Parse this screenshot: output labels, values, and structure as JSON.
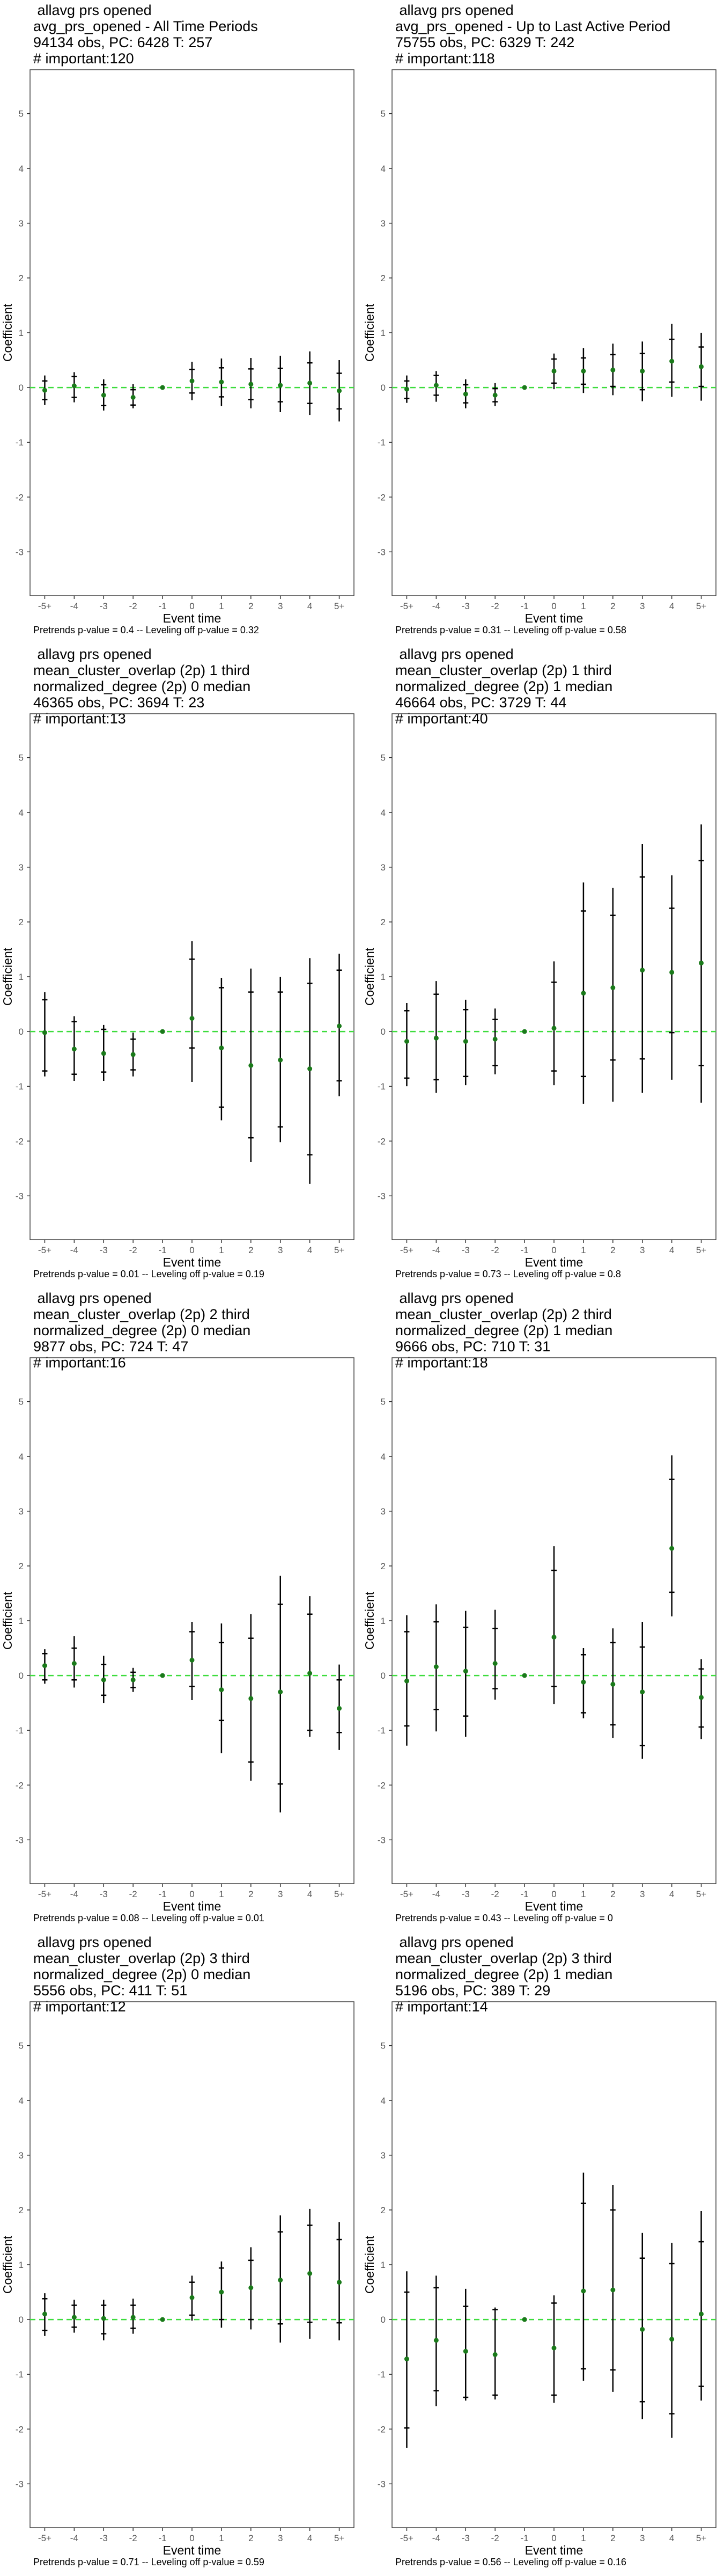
{
  "style": {
    "point_color": "#1a7a1a",
    "refline_color": "#3ddc3d",
    "bar_color": "#000000",
    "frame_color": "#444444"
  },
  "chart_data": [
    {
      "type": "scatter",
      "header_lines": [
        "allavg prs opened",
        "avg_prs_opened - All Time Periods",
        "94134 obs, PC: 6428 T: 257",
        "# important:120"
      ],
      "xlabel": "Event time",
      "ylabel": "Coefficient",
      "categories": [
        "-5+",
        "-4",
        "-3",
        "-2",
        "-1",
        "0",
        "1",
        "2",
        "3",
        "4",
        "5+"
      ],
      "ylim": [
        -3.8,
        5.8
      ],
      "yticks": [
        -3,
        -2,
        -1,
        0,
        1,
        2,
        3,
        4,
        5
      ],
      "series": [
        {
          "values": [
            -0.05,
            0.03,
            -0.14,
            -0.18,
            0.0,
            0.12,
            0.1,
            0.06,
            0.04,
            0.08,
            -0.06
          ],
          "outer_lo": [
            -0.32,
            -0.27,
            -0.42,
            -0.38,
            0.0,
            -0.23,
            -0.34,
            -0.38,
            -0.45,
            -0.5,
            -0.62
          ],
          "outer_hi": [
            0.22,
            0.28,
            0.15,
            0.06,
            0.0,
            0.47,
            0.53,
            0.54,
            0.58,
            0.66,
            0.5
          ],
          "inner_lo": [
            -0.22,
            -0.18,
            -0.33,
            -0.32,
            0.0,
            -0.1,
            -0.17,
            -0.22,
            -0.26,
            -0.29,
            -0.39
          ],
          "inner_hi": [
            0.12,
            0.2,
            0.05,
            -0.04,
            0.0,
            0.33,
            0.36,
            0.34,
            0.35,
            0.45,
            0.26
          ]
        }
      ],
      "footnote": "Pretrends p-value = 0.4 -- Leveling off p-value = 0.32"
    },
    {
      "type": "scatter",
      "header_lines": [
        "allavg prs opened",
        "avg_prs_opened - Up to Last Active Period",
        "75755 obs, PC: 6329 T: 242",
        "# important:118"
      ],
      "xlabel": "Event time",
      "ylabel": "Coefficient",
      "categories": [
        "-5+",
        "-4",
        "-3",
        "-2",
        "-1",
        "0",
        "1",
        "2",
        "3",
        "4",
        "5+"
      ],
      "ylim": [
        -3.8,
        5.8
      ],
      "yticks": [
        -3,
        -2,
        -1,
        0,
        1,
        2,
        3,
        4,
        5
      ],
      "series": [
        {
          "values": [
            -0.03,
            0.04,
            -0.12,
            -0.14,
            0.0,
            0.3,
            0.3,
            0.32,
            0.3,
            0.48,
            0.38
          ],
          "outer_lo": [
            -0.28,
            -0.26,
            -0.38,
            -0.34,
            0.0,
            -0.03,
            -0.1,
            -0.14,
            -0.25,
            -0.17,
            -0.24
          ],
          "outer_hi": [
            0.22,
            0.3,
            0.15,
            0.08,
            0.0,
            0.62,
            0.72,
            0.8,
            0.84,
            1.16,
            1.0
          ],
          "inner_lo": [
            -0.2,
            -0.14,
            -0.28,
            -0.26,
            0.0,
            0.08,
            0.06,
            0.02,
            -0.04,
            0.1,
            0.02
          ],
          "inner_hi": [
            0.12,
            0.22,
            0.05,
            -0.02,
            0.0,
            0.52,
            0.54,
            0.6,
            0.62,
            0.88,
            0.74
          ]
        }
      ],
      "footnote": "Pretrends p-value = 0.31 -- Leveling off p-value = 0.58"
    },
    {
      "type": "scatter",
      "header_lines": [
        "allavg prs opened",
        "mean_cluster_overlap (2p) 1 third",
        "normalized_degree (2p) 0 median",
        "46365 obs, PC: 3694 T: 23",
        "# important:13"
      ],
      "xlabel": "Event time",
      "ylabel": "Coefficient",
      "categories": [
        "-5+",
        "-4",
        "-3",
        "-2",
        "-1",
        "0",
        "1",
        "2",
        "3",
        "4",
        "5+"
      ],
      "ylim": [
        -3.8,
        5.8
      ],
      "yticks": [
        -3,
        -2,
        -1,
        0,
        1,
        2,
        3,
        4,
        5
      ],
      "series": [
        {
          "values": [
            -0.02,
            -0.32,
            -0.4,
            -0.42,
            0.0,
            0.24,
            -0.3,
            -0.62,
            -0.52,
            -0.68,
            0.1
          ],
          "outer_lo": [
            -0.82,
            -0.9,
            -0.9,
            -0.82,
            0.0,
            -0.92,
            -1.62,
            -2.38,
            -2.02,
            -2.78,
            -1.18
          ],
          "outer_hi": [
            0.72,
            0.28,
            0.12,
            -0.02,
            0.0,
            1.65,
            0.98,
            1.15,
            1.0,
            1.34,
            1.42
          ],
          "inner_lo": [
            -0.72,
            -0.78,
            -0.74,
            -0.7,
            0.0,
            -0.3,
            -1.38,
            -1.94,
            -1.74,
            -2.25,
            -0.9
          ],
          "inner_hi": [
            0.58,
            0.18,
            0.04,
            -0.14,
            0.0,
            1.32,
            0.8,
            0.72,
            0.72,
            0.88,
            1.12
          ]
        }
      ],
      "footnote": "Pretrends p-value = 0.01 -- Leveling off p-value = 0.19"
    },
    {
      "type": "scatter",
      "header_lines": [
        "allavg prs opened",
        "mean_cluster_overlap (2p) 1 third",
        "normalized_degree (2p) 1 median",
        "46664 obs, PC: 3729 T: 44",
        "# important:40"
      ],
      "xlabel": "Event time",
      "ylabel": "Coefficient",
      "categories": [
        "-5+",
        "-4",
        "-3",
        "-2",
        "-1",
        "0",
        "1",
        "2",
        "3",
        "4",
        "5+"
      ],
      "ylim": [
        -3.8,
        5.8
      ],
      "yticks": [
        -3,
        -2,
        -1,
        0,
        1,
        2,
        3,
        4,
        5
      ],
      "series": [
        {
          "values": [
            -0.18,
            -0.12,
            -0.18,
            -0.14,
            0.0,
            0.06,
            0.7,
            0.8,
            1.12,
            1.08,
            1.25
          ],
          "outer_lo": [
            -1.0,
            -1.12,
            -0.98,
            -0.78,
            0.0,
            -0.98,
            -1.32,
            -1.28,
            -1.12,
            -0.88,
            -1.3
          ],
          "outer_hi": [
            0.52,
            0.92,
            0.58,
            0.42,
            0.0,
            1.28,
            2.72,
            2.62,
            3.42,
            2.85,
            3.78
          ],
          "inner_lo": [
            -0.85,
            -0.88,
            -0.82,
            -0.62,
            0.0,
            -0.72,
            -0.82,
            -0.52,
            -0.5,
            -0.02,
            -0.62
          ],
          "inner_hi": [
            0.38,
            0.68,
            0.4,
            0.22,
            0.0,
            0.9,
            2.2,
            2.12,
            2.82,
            2.25,
            3.12
          ]
        }
      ],
      "footnote": "Pretrends p-value = 0.73 -- Leveling off p-value = 0.8"
    },
    {
      "type": "scatter",
      "header_lines": [
        "allavg prs opened",
        "mean_cluster_overlap (2p) 2 third",
        "normalized_degree (2p) 0 median",
        "9877 obs, PC: 724 T: 47",
        "# important:16"
      ],
      "xlabel": "Event time",
      "ylabel": "Coefficient",
      "categories": [
        "-5+",
        "-4",
        "-3",
        "-2",
        "-1",
        "0",
        "1",
        "2",
        "3",
        "4",
        "5+"
      ],
      "ylim": [
        -3.8,
        5.8
      ],
      "yticks": [
        -3,
        -2,
        -1,
        0,
        1,
        2,
        3,
        4,
        5
      ],
      "series": [
        {
          "values": [
            0.18,
            0.22,
            -0.08,
            -0.08,
            0.0,
            0.28,
            -0.26,
            -0.42,
            -0.3,
            0.04,
            -0.6
          ],
          "outer_lo": [
            -0.15,
            -0.22,
            -0.5,
            -0.3,
            0.0,
            -0.45,
            -1.42,
            -1.92,
            -2.5,
            -1.12,
            -1.36
          ],
          "outer_hi": [
            0.48,
            0.72,
            0.36,
            0.14,
            0.0,
            0.98,
            0.95,
            1.12,
            1.82,
            1.45,
            0.2
          ],
          "inner_lo": [
            -0.08,
            -0.08,
            -0.36,
            -0.22,
            0.0,
            -0.2,
            -0.82,
            -1.58,
            -1.98,
            -1.0,
            -1.04
          ],
          "inner_hi": [
            0.4,
            0.5,
            0.2,
            0.06,
            0.0,
            0.8,
            0.6,
            0.68,
            1.3,
            1.12,
            -0.08
          ]
        }
      ],
      "footnote": "Pretrends p-value = 0.08 -- Leveling off p-value = 0.01"
    },
    {
      "type": "scatter",
      "header_lines": [
        "allavg prs opened",
        "mean_cluster_overlap (2p) 2 third",
        "normalized_degree (2p) 1 median",
        "9666 obs, PC: 710 T: 31",
        "# important:18"
      ],
      "xlabel": "Event time",
      "ylabel": "Coefficient",
      "categories": [
        "-5+",
        "-4",
        "-3",
        "-2",
        "-1",
        "0",
        "1",
        "2",
        "3",
        "4",
        "5+"
      ],
      "ylim": [
        -3.8,
        5.8
      ],
      "yticks": [
        -3,
        -2,
        -1,
        0,
        1,
        2,
        3,
        4,
        5
      ],
      "series": [
        {
          "values": [
            -0.1,
            0.16,
            0.08,
            0.22,
            0.0,
            0.7,
            -0.12,
            -0.16,
            -0.3,
            2.32,
            -0.4
          ],
          "outer_lo": [
            -1.28,
            -1.02,
            -1.12,
            -0.44,
            0.0,
            -0.52,
            -0.78,
            -1.14,
            -1.52,
            1.08,
            -1.16
          ],
          "outer_hi": [
            1.1,
            1.3,
            1.18,
            1.2,
            0.0,
            2.36,
            0.5,
            0.86,
            0.98,
            4.02,
            0.3
          ],
          "inner_lo": [
            -0.92,
            -0.62,
            -0.74,
            -0.24,
            0.0,
            -0.2,
            -0.68,
            -0.9,
            -1.28,
            1.52,
            -0.94
          ],
          "inner_hi": [
            0.8,
            0.98,
            0.88,
            0.86,
            0.0,
            1.92,
            0.38,
            0.6,
            0.52,
            3.58,
            0.12
          ]
        }
      ],
      "footnote": "Pretrends p-value = 0.43 -- Leveling off p-value = 0"
    },
    {
      "type": "scatter",
      "header_lines": [
        "allavg prs opened",
        "mean_cluster_overlap (2p) 3 third",
        "normalized_degree (2p) 0 median",
        "5556 obs, PC: 411 T: 51",
        "# important:12"
      ],
      "xlabel": "Event time",
      "ylabel": "Coefficient",
      "categories": [
        "-5+",
        "-4",
        "-3",
        "-2",
        "-1",
        "0",
        "1",
        "2",
        "3",
        "4",
        "5+"
      ],
      "ylim": [
        -3.8,
        5.8
      ],
      "yticks": [
        -3,
        -2,
        -1,
        0,
        1,
        2,
        3,
        4,
        5
      ],
      "series": [
        {
          "values": [
            0.1,
            0.04,
            0.02,
            0.04,
            0.0,
            0.4,
            0.5,
            0.58,
            0.72,
            0.84,
            0.68
          ],
          "outer_lo": [
            -0.3,
            -0.24,
            -0.38,
            -0.26,
            0.0,
            -0.02,
            -0.15,
            -0.18,
            -0.42,
            -0.35,
            -0.38
          ],
          "outer_hi": [
            0.48,
            0.36,
            0.36,
            0.38,
            0.0,
            0.8,
            1.06,
            1.32,
            1.9,
            2.02,
            1.78
          ],
          "inner_lo": [
            -0.2,
            -0.14,
            -0.26,
            -0.16,
            0.0,
            0.08,
            0.0,
            0.0,
            -0.08,
            -0.05,
            -0.06
          ],
          "inner_hi": [
            0.38,
            0.26,
            0.26,
            0.26,
            0.0,
            0.68,
            0.94,
            1.08,
            1.6,
            1.72,
            1.46
          ]
        }
      ],
      "footnote": "Pretrends p-value = 0.71 -- Leveling off p-value = 0.59"
    },
    {
      "type": "scatter",
      "header_lines": [
        "allavg prs opened",
        "mean_cluster_overlap (2p) 3 third",
        "normalized_degree (2p) 1 median",
        "5196 obs, PC: 389 T: 29",
        "# important:14"
      ],
      "xlabel": "Event time",
      "ylabel": "Coefficient",
      "categories": [
        "-5+",
        "-4",
        "-3",
        "-2",
        "-1",
        "0",
        "1",
        "2",
        "3",
        "4",
        "5+"
      ],
      "ylim": [
        -3.8,
        5.8
      ],
      "yticks": [
        -3,
        -2,
        -1,
        0,
        1,
        2,
        3,
        4,
        5
      ],
      "series": [
        {
          "values": [
            -0.72,
            -0.38,
            -0.58,
            -0.64,
            0.0,
            -0.52,
            0.52,
            0.54,
            -0.18,
            -0.36,
            0.1
          ],
          "outer_lo": [
            -2.34,
            -1.58,
            -1.48,
            -1.46,
            0.0,
            -1.52,
            -1.12,
            -1.32,
            -1.82,
            -2.16,
            -1.48
          ],
          "outer_hi": [
            0.88,
            0.8,
            0.56,
            0.22,
            0.0,
            0.44,
            2.68,
            2.46,
            1.58,
            1.4,
            1.98
          ],
          "inner_lo": [
            -1.98,
            -1.3,
            -1.42,
            -1.38,
            0.0,
            -1.38,
            -0.9,
            -0.92,
            -1.5,
            -1.72,
            -1.22
          ],
          "inner_hi": [
            0.5,
            0.58,
            0.24,
            0.18,
            0.0,
            0.3,
            2.12,
            2.0,
            1.12,
            1.02,
            1.42
          ]
        }
      ],
      "footnote": "Pretrends p-value = 0.56 -- Leveling off p-value = 0.16"
    }
  ]
}
